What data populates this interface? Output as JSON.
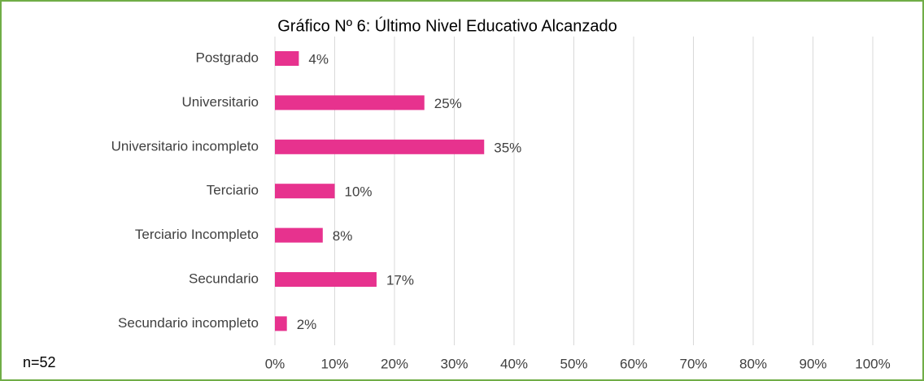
{
  "chart_data": {
    "type": "bar",
    "orientation": "horizontal",
    "title": "Gráfico Nº 6: Último Nivel Educativo Alcanzado",
    "annotation": "n=52",
    "categories": [
      "Postgrado",
      "Universitario",
      "Universitario incompleto",
      "Terciario",
      "Terciario Incompleto",
      "Secundario",
      "Secundario incompleto"
    ],
    "values": [
      4,
      25,
      35,
      10,
      8,
      17,
      2
    ],
    "value_labels": [
      "4%",
      "25%",
      "35%",
      "10%",
      "8%",
      "17%",
      "2%"
    ],
    "color": "#e7328e",
    "xlim": [
      0,
      100
    ],
    "xticks": [
      {
        "value": 0,
        "label": "0%"
      },
      {
        "value": 10,
        "label": "10%"
      },
      {
        "value": 20,
        "label": "20%"
      },
      {
        "value": 30,
        "label": "30%"
      },
      {
        "value": 40,
        "label": "40%"
      },
      {
        "value": 50,
        "label": "50%"
      },
      {
        "value": 60,
        "label": "60%"
      },
      {
        "value": 70,
        "label": "70%"
      },
      {
        "value": 80,
        "label": "80%"
      },
      {
        "value": 90,
        "label": "90%"
      },
      {
        "value": 100,
        "label": "100%"
      }
    ],
    "grid": true
  }
}
